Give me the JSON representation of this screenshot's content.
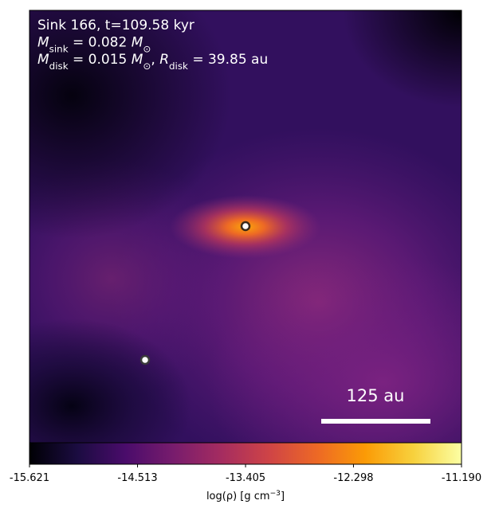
{
  "chart_data": {
    "type": "image",
    "annotation": [
      [
        "Sink 166, t=109.58 kyr"
      ],
      [
        {
          "italic": "M"
        },
        {
          "sub": "sink"
        },
        " = 0.082 ",
        {
          "italic": "M"
        },
        {
          "sub": "⊙"
        }
      ],
      [
        {
          "italic": "M"
        },
        {
          "sub": "disk"
        },
        " = 0.015 ",
        {
          "italic": "M"
        },
        {
          "sub": "⊙"
        },
        ", ",
        {
          "italic": "R"
        },
        {
          "sub": "disk"
        },
        " = 39.85 au"
      ]
    ],
    "scale_bar": "125 au",
    "colorbar": {
      "label": [
        "log(ρ) [g cm",
        {
          "sup": "−3"
        },
        "]"
      ],
      "lim": [
        -15.621,
        -11.19
      ],
      "ticks": [
        -15.621,
        -14.513,
        -13.405,
        -12.298,
        {
          "value": -11.19,
          "label": "-11.190"
        }
      ],
      "colormap": [
        "#000004",
        "#1b0c41",
        "#4a0c6b",
        "#781c6d",
        "#a52c60",
        "#cf4446",
        "#ed6925",
        "#fb9b06",
        "#f7d13d",
        "#fcffa4"
      ]
    }
  }
}
